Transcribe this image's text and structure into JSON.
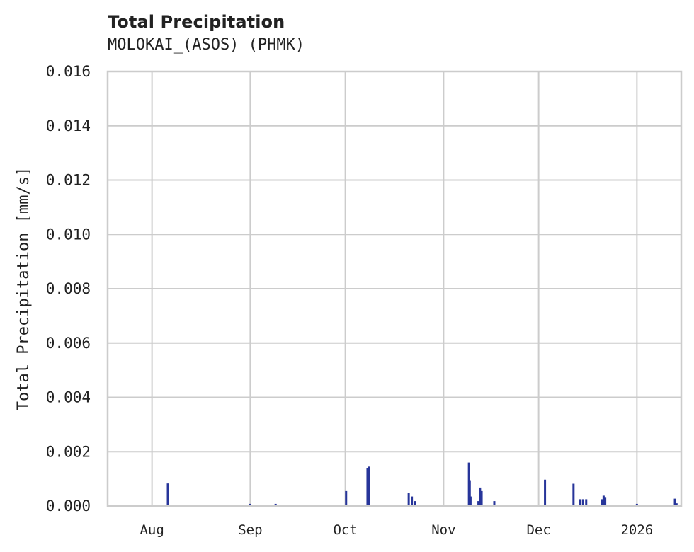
{
  "header": {
    "title": "Total Precipitation",
    "subtitle": "MOLOKAI_(ASOS) (PHMK)"
  },
  "chart_data": {
    "type": "bar",
    "title": "Total Precipitation",
    "subtitle": "MOLOKAI_(ASOS) (PHMK)",
    "xlabel": "",
    "ylabel": "Total Precipitation [mm/s]",
    "ylim": [
      0,
      0.016
    ],
    "yticks": [
      "0.000",
      "0.002",
      "0.004",
      "0.006",
      "0.008",
      "0.010",
      "0.012",
      "0.014",
      "0.016"
    ],
    "xlim": [
      "2025-07-18",
      "2026-01-15"
    ],
    "xticks": [
      {
        "label": "Aug",
        "date": "2025-08-01"
      },
      {
        "label": "Sep",
        "date": "2025-09-01"
      },
      {
        "label": "Oct",
        "date": "2025-10-01"
      },
      {
        "label": "Nov",
        "date": "2025-11-01"
      },
      {
        "label": "Dec",
        "date": "2025-12-01"
      },
      {
        "label": "2026",
        "date": "2026-01-01"
      }
    ],
    "grid": true,
    "legend": null,
    "bar_color": "#27359a",
    "series": [
      {
        "name": "Total Precipitation",
        "points": [
          {
            "date": "2025-07-28",
            "value": 5e-05
          },
          {
            "date": "2025-08-06",
            "value": 0.00083
          },
          {
            "date": "2025-09-01",
            "value": 8e-05
          },
          {
            "date": "2025-09-09",
            "value": 8e-05
          },
          {
            "date": "2025-09-12",
            "value": 4e-05
          },
          {
            "date": "2025-09-16",
            "value": 4e-05
          },
          {
            "date": "2025-09-19",
            "value": 4e-05
          },
          {
            "date": "2025-10-01",
            "value": 4e-05
          },
          {
            "date": "2025-10-01T06",
            "value": 0.00055
          },
          {
            "date": "2025-10-08",
            "value": 0.0014
          },
          {
            "date": "2025-10-08T12",
            "value": 0.00145
          },
          {
            "date": "2025-10-21",
            "value": 0.00047
          },
          {
            "date": "2025-10-22",
            "value": 0.00035
          },
          {
            "date": "2025-10-23",
            "value": 0.00018
          },
          {
            "date": "2025-10-31",
            "value": 3e-05
          },
          {
            "date": "2025-11-09",
            "value": 0.0016
          },
          {
            "date": "2025-11-09T06",
            "value": 0.00095
          },
          {
            "date": "2025-11-09T12",
            "value": 0.00035
          },
          {
            "date": "2025-11-12",
            "value": 0.00018
          },
          {
            "date": "2025-11-12T12",
            "value": 0.00068
          },
          {
            "date": "2025-11-13",
            "value": 0.00055
          },
          {
            "date": "2025-11-17",
            "value": 0.00018
          },
          {
            "date": "2025-11-18",
            "value": 4e-05
          },
          {
            "date": "2025-12-03",
            "value": 0.00097
          },
          {
            "date": "2025-12-12",
            "value": 0.00082
          },
          {
            "date": "2025-12-14",
            "value": 0.00025
          },
          {
            "date": "2025-12-15",
            "value": 0.00025
          },
          {
            "date": "2025-12-16",
            "value": 0.00025
          },
          {
            "date": "2025-12-21",
            "value": 0.00025
          },
          {
            "date": "2025-12-21T12",
            "value": 0.00038
          },
          {
            "date": "2025-12-22",
            "value": 0.00033
          },
          {
            "date": "2025-12-24",
            "value": 4e-05
          },
          {
            "date": "2026-01-01",
            "value": 8e-05
          },
          {
            "date": "2026-01-05",
            "value": 4e-05
          },
          {
            "date": "2026-01-13",
            "value": 0.00027
          },
          {
            "date": "2026-01-13T12",
            "value": 0.0001
          }
        ]
      }
    ]
  },
  "colors": {
    "bar": "#27359a",
    "grid": "#cccccc",
    "frame": "#cccccc",
    "text": "#222222"
  }
}
